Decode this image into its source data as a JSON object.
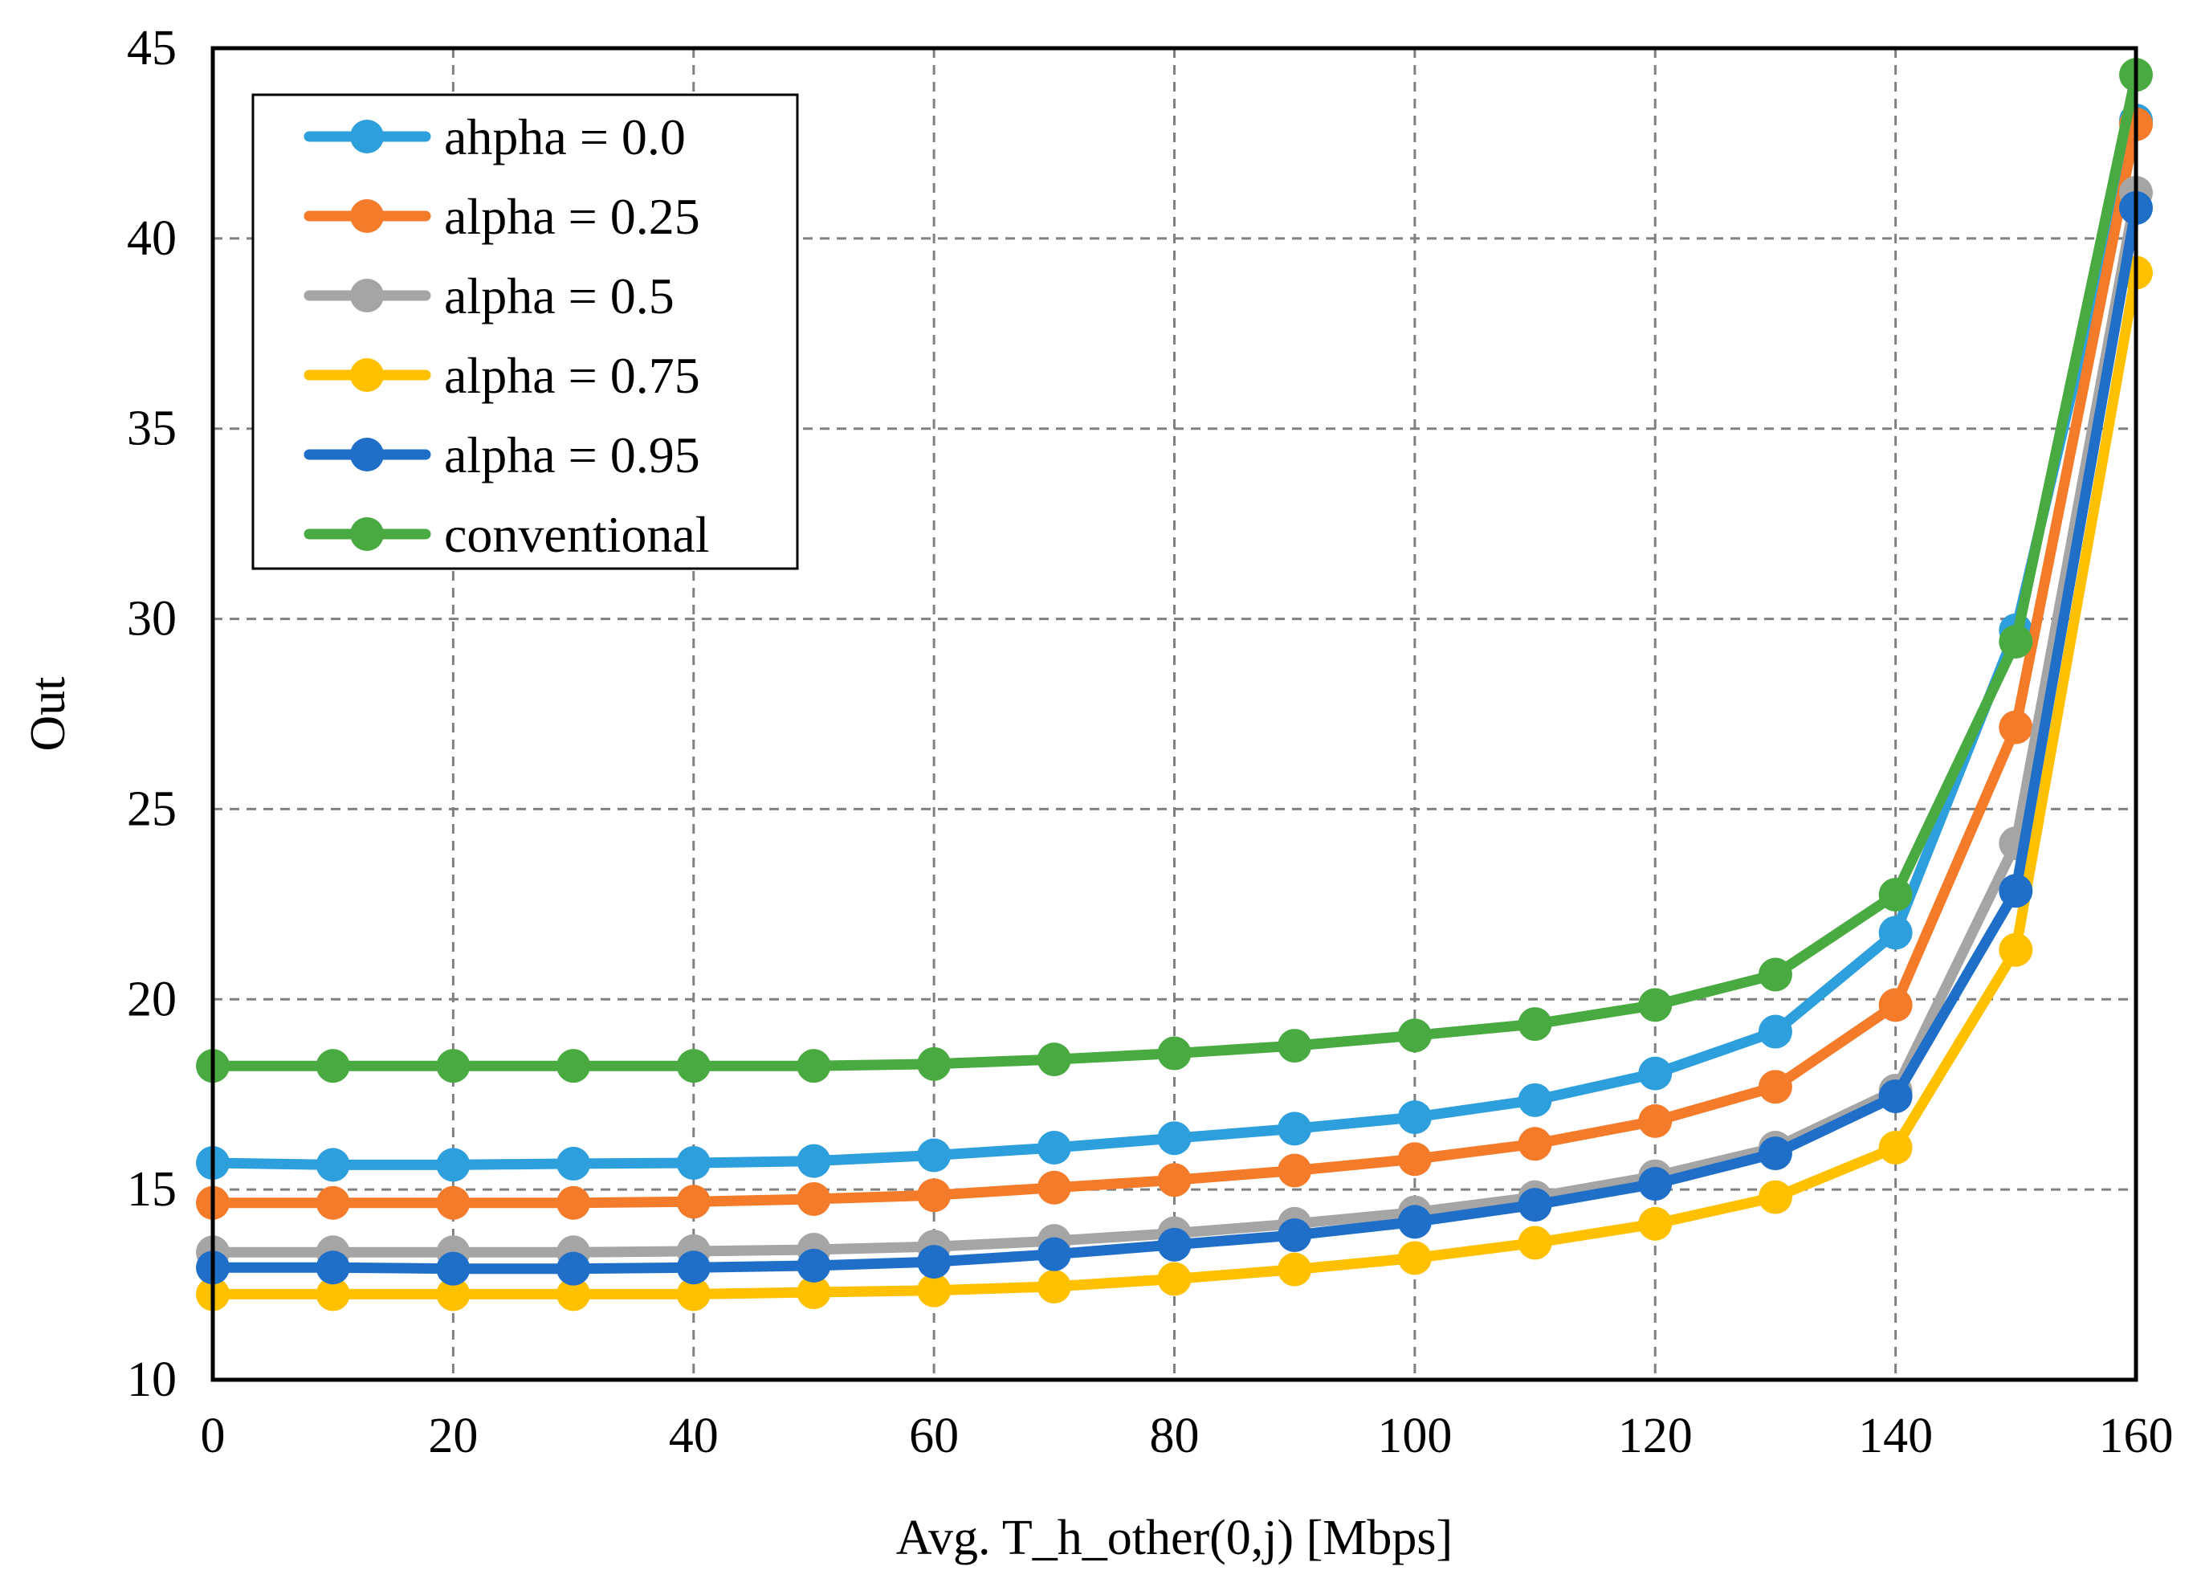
{
  "chart_data": {
    "type": "line",
    "title": "",
    "xlabel": "Avg. T_h_other(0,j) [Mbps]",
    "ylabel": "Out",
    "xlim": [
      0,
      160
    ],
    "ylim": [
      10,
      45
    ],
    "xticks": [
      0,
      20,
      40,
      60,
      80,
      100,
      120,
      140,
      160
    ],
    "yticks": [
      10,
      15,
      20,
      25,
      30,
      35,
      40,
      45
    ],
    "grid": true,
    "legend_position": "top-left",
    "x": [
      0,
      10,
      20,
      30,
      40,
      50,
      60,
      70,
      80,
      90,
      100,
      110,
      120,
      130,
      140,
      150,
      160
    ],
    "series": [
      {
        "name": "ahpha = 0.0",
        "color": "#2E9FDD",
        "values": [
          15.7,
          15.65,
          15.65,
          15.68,
          15.7,
          15.75,
          15.9,
          16.1,
          16.35,
          16.6,
          16.9,
          17.35,
          18.05,
          19.15,
          21.75,
          29.7,
          43.1
        ]
      },
      {
        "name": "alpha = 0.25",
        "color": "#F47B2A",
        "values": [
          14.65,
          14.65,
          14.65,
          14.65,
          14.68,
          14.75,
          14.85,
          15.05,
          15.25,
          15.5,
          15.8,
          16.2,
          16.8,
          17.7,
          19.85,
          27.15,
          43.0
        ]
      },
      {
        "name": "alpha = 0.5",
        "color": "#A5A5A5",
        "values": [
          13.35,
          13.35,
          13.35,
          13.35,
          13.38,
          13.42,
          13.5,
          13.65,
          13.85,
          14.1,
          14.4,
          14.8,
          15.35,
          16.1,
          17.6,
          24.1,
          41.2
        ]
      },
      {
        "name": "alpha = 0.75",
        "color": "#FFC000",
        "values": [
          12.25,
          12.25,
          12.25,
          12.25,
          12.25,
          12.3,
          12.35,
          12.45,
          12.65,
          12.9,
          13.2,
          13.6,
          14.1,
          14.8,
          16.1,
          21.3,
          39.1
        ]
      },
      {
        "name": "alpha = 0.95",
        "color": "#1F6FC9",
        "values": [
          12.95,
          12.95,
          12.92,
          12.92,
          12.95,
          13.0,
          13.1,
          13.3,
          13.55,
          13.8,
          14.15,
          14.6,
          15.15,
          15.95,
          17.45,
          22.85,
          40.8
        ]
      },
      {
        "name": "conventional",
        "color": "#4AAA42",
        "values": [
          18.25,
          18.25,
          18.25,
          18.25,
          18.25,
          18.25,
          18.3,
          18.42,
          18.58,
          18.78,
          19.05,
          19.35,
          19.85,
          20.65,
          22.75,
          29.4,
          44.3
        ]
      }
    ]
  }
}
